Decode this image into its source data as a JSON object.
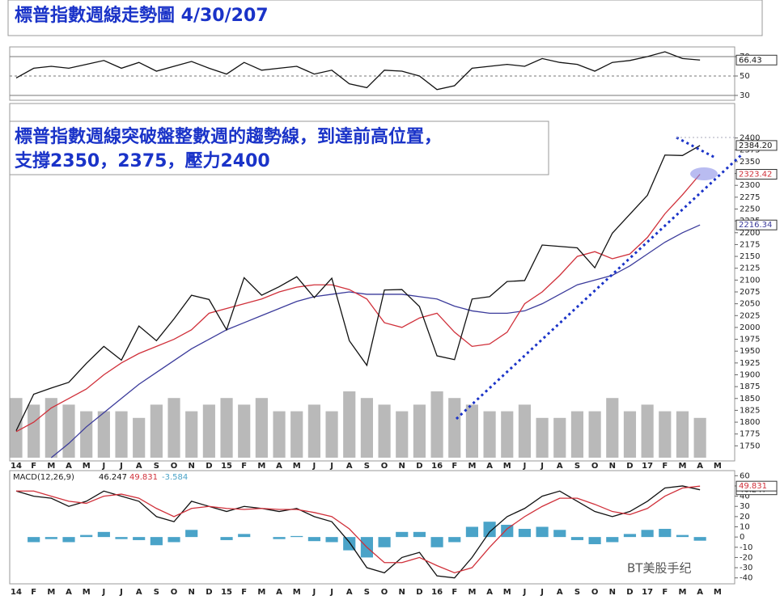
{
  "chart_data": [
    {
      "type": "line",
      "title": "標普指數週線走勢圖 4/30/207",
      "annotations": [
        "標普指數週線突破盤整數週的趨勢線，到達前高位置，",
        "支撐2350，2375，壓力2400"
      ],
      "categories": [
        "14",
        "F",
        "M",
        "A",
        "M",
        "J",
        "J",
        "A",
        "S",
        "O",
        "N",
        "D",
        "15",
        "F",
        "M",
        "A",
        "M",
        "J",
        "J",
        "A",
        "S",
        "O",
        "N",
        "D",
        "16",
        "F",
        "M",
        "A",
        "M",
        "J",
        "J",
        "A",
        "S",
        "O",
        "N",
        "D",
        "17",
        "F",
        "M",
        "A",
        "M"
      ],
      "ylim": [
        1725,
        2425
      ],
      "yticks": [
        2400,
        2375,
        2350,
        2325,
        2300,
        2275,
        2250,
        2225,
        2200,
        2175,
        2150,
        2125,
        2100,
        2075,
        2050,
        2025,
        2000,
        1975,
        1950,
        1925,
        1900,
        1875,
        1850,
        1825,
        1800,
        1775,
        1750
      ],
      "y2lim": [
        0,
        50
      ],
      "grid": false,
      "series": [
        {
          "type": "bar",
          "axis": "y2",
          "color": "#b9b9b9",
          "values": [
            9,
            8,
            9,
            8,
            7,
            7,
            7,
            6,
            8,
            9,
            7,
            8,
            9,
            8,
            9,
            7,
            7,
            8,
            7,
            10,
            9,
            8,
            7,
            8,
            10,
            9,
            8,
            7,
            7,
            8,
            6,
            6,
            7,
            7,
            9,
            7,
            8,
            7,
            7,
            6,
            null
          ]
        },
        {
          "type": "line",
          "color": "#3b3b9b",
          "values": [
            null,
            null,
            1725,
            1755,
            1790,
            1820,
            1850,
            1880,
            1905,
            1930,
            1955,
            1975,
            1995,
            2010,
            2025,
            2040,
            2055,
            2065,
            2070,
            2075,
            2070,
            2070,
            2070,
            2065,
            2060,
            2045,
            2035,
            2030,
            2030,
            2035,
            2050,
            2070,
            2090,
            2100,
            2110,
            2130,
            2155,
            2180,
            2200,
            2216.34,
            null
          ],
          "value_labels": [
            null,
            null,
            null,
            null,
            null,
            null,
            null,
            null,
            null,
            null,
            null,
            null,
            null,
            null,
            null,
            null,
            null,
            null,
            null,
            null,
            null,
            null,
            null,
            null,
            null,
            null,
            null,
            null,
            null,
            null,
            null,
            null,
            null,
            null,
            null,
            null,
            null,
            null,
            null,
            "2216.34",
            null
          ]
        },
        {
          "type": "line",
          "color": "#d0303a",
          "values": [
            1780,
            1800,
            1830,
            1850,
            1870,
            1900,
            1925,
            1945,
            1960,
            1975,
            1995,
            2030,
            2040,
            2050,
            2060,
            2075,
            2085,
            2090,
            2090,
            2080,
            2060,
            2010,
            2000,
            2020,
            2030,
            1990,
            1960,
            1965,
            1990,
            2050,
            2075,
            2110,
            2150,
            2160,
            2145,
            2155,
            2190,
            2240,
            2280,
            2323.42,
            null
          ],
          "value_labels": [
            null,
            null,
            null,
            null,
            null,
            null,
            null,
            null,
            null,
            null,
            null,
            null,
            null,
            null,
            null,
            null,
            null,
            null,
            null,
            null,
            null,
            null,
            null,
            null,
            null,
            null,
            null,
            null,
            null,
            null,
            null,
            null,
            null,
            null,
            null,
            null,
            null,
            null,
            null,
            "2323.42",
            null
          ]
        },
        {
          "type": "line",
          "color": "#111111",
          "values": [
            1782,
            1859,
            1872,
            1884,
            1924,
            1960,
            1931,
            2003,
            1972,
            2018,
            2068,
            2059,
            1995,
            2105,
            2068,
            2086,
            2107,
            2063,
            2104,
            1972,
            1920,
            2079,
            2080,
            2044,
            1940,
            1932,
            2060,
            2065,
            2097,
            2099,
            2174,
            2171,
            2168,
            2126,
            2199,
            2239,
            2279,
            2364,
            2363,
            2384.2,
            null
          ],
          "value_labels": [
            null,
            null,
            null,
            null,
            null,
            null,
            null,
            null,
            null,
            null,
            null,
            null,
            null,
            null,
            null,
            null,
            null,
            null,
            null,
            null,
            null,
            null,
            null,
            null,
            null,
            null,
            null,
            null,
            null,
            null,
            null,
            null,
            null,
            null,
            null,
            null,
            null,
            null,
            null,
            "2384.20",
            null
          ]
        }
      ]
    },
    {
      "type": "line",
      "ylim": [
        25,
        80
      ],
      "yticks": [
        70,
        50,
        30
      ],
      "grid": true,
      "series": [
        {
          "type": "line",
          "color": "#111111",
          "values": [
            48,
            58,
            60,
            58,
            62,
            66,
            58,
            64,
            55,
            60,
            65,
            58,
            52,
            64,
            56,
            58,
            60,
            52,
            56,
            42,
            38,
            56,
            55,
            50,
            36,
            40,
            58,
            60,
            62,
            60,
            68,
            64,
            62,
            55,
            64,
            66,
            70,
            75,
            68,
            66.43,
            null
          ],
          "value_labels": [
            null,
            null,
            null,
            null,
            null,
            null,
            null,
            null,
            null,
            null,
            null,
            null,
            null,
            null,
            null,
            null,
            null,
            null,
            null,
            null,
            null,
            null,
            null,
            null,
            null,
            null,
            null,
            null,
            null,
            null,
            null,
            null,
            null,
            null,
            null,
            null,
            null,
            null,
            null,
            "66.43",
            null
          ]
        }
      ]
    },
    {
      "type": "line",
      "title": "MACD(12,26,9)",
      "ylim": [
        -45,
        65
      ],
      "yticks": [
        60,
        50,
        40,
        30,
        20,
        10,
        0,
        -10,
        -20,
        -30,
        -40
      ],
      "grid": false,
      "series": [
        {
          "type": "bar",
          "color": "#4aa3c8",
          "values": [
            0,
            -5,
            -2,
            -5,
            2,
            5,
            -2,
            -3,
            -8,
            -5,
            7,
            0,
            -3,
            3,
            0,
            -2,
            1,
            -4,
            -5,
            -13,
            -20,
            -10,
            5,
            5,
            -10,
            -5,
            10,
            15,
            12,
            8,
            10,
            7,
            -3,
            -7,
            -5,
            3,
            7,
            8,
            2,
            -3.584,
            null
          ]
        },
        {
          "type": "line",
          "color": "#111111",
          "values": [
            45,
            40,
            38,
            30,
            35,
            45,
            40,
            35,
            20,
            15,
            35,
            30,
            25,
            30,
            28,
            25,
            28,
            20,
            15,
            -5,
            -30,
            -35,
            -20,
            -15,
            -38,
            -40,
            -20,
            5,
            20,
            28,
            40,
            45,
            35,
            25,
            20,
            25,
            35,
            48,
            50,
            46.247,
            null
          ],
          "value_labels": [
            null,
            null,
            null,
            null,
            null,
            null,
            null,
            null,
            null,
            null,
            null,
            null,
            null,
            null,
            null,
            null,
            null,
            null,
            null,
            null,
            null,
            null,
            null,
            null,
            null,
            null,
            null,
            null,
            null,
            null,
            null,
            null,
            null,
            null,
            null,
            null,
            null,
            null,
            null,
            "46.247",
            null
          ]
        },
        {
          "type": "line",
          "color": "#d0303a",
          "values": [
            45,
            45,
            40,
            35,
            33,
            40,
            42,
            38,
            28,
            20,
            28,
            30,
            28,
            27,
            28,
            27,
            27,
            24,
            20,
            8,
            -10,
            -25,
            -25,
            -20,
            -28,
            -35,
            -30,
            -10,
            8,
            20,
            30,
            38,
            38,
            32,
            25,
            22,
            28,
            40,
            48,
            49.831,
            null
          ],
          "value_labels": [
            null,
            null,
            null,
            null,
            null,
            null,
            null,
            null,
            null,
            null,
            null,
            null,
            null,
            null,
            null,
            null,
            null,
            null,
            null,
            null,
            null,
            null,
            null,
            null,
            null,
            null,
            null,
            null,
            null,
            null,
            null,
            null,
            null,
            null,
            null,
            null,
            null,
            null,
            null,
            "49.831",
            null
          ]
        }
      ]
    }
  ],
  "watermark": "BT美股手纪"
}
